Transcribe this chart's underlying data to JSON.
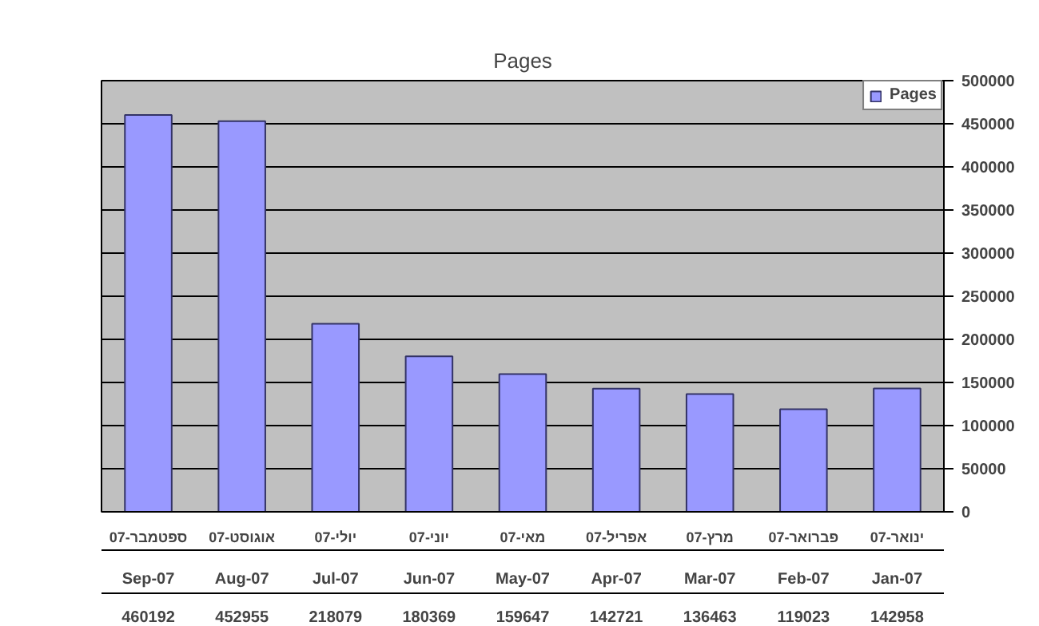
{
  "chart_data": {
    "type": "bar",
    "title": "Pages",
    "categories": [
      "ספטמבר-07",
      "אוגוסט-07",
      "יולי-07",
      "יוני-07",
      "מאי-07",
      "אפריל-07",
      "מרץ-07",
      "פברואר-07",
      "ינואר-07"
    ],
    "series": [
      {
        "name": "Pages",
        "color": "#9999ff",
        "values": [
          460192,
          452955,
          218079,
          180369,
          159647,
          142721,
          136463,
          119023,
          142958
        ]
      }
    ],
    "ylim": [
      0,
      500000
    ],
    "yticks": [
      0,
      50000,
      100000,
      150000,
      200000,
      250000,
      300000,
      350000,
      400000,
      450000,
      500000
    ],
    "grid": "y",
    "legend": "top right",
    "data_labels": true,
    "annotations": [
      "Sep-07",
      "Aug-07",
      "Jul-07",
      "Jun-07",
      "May-07",
      "Apr-07",
      "Mar-07",
      "Feb-07",
      "Jan-07"
    ]
  }
}
